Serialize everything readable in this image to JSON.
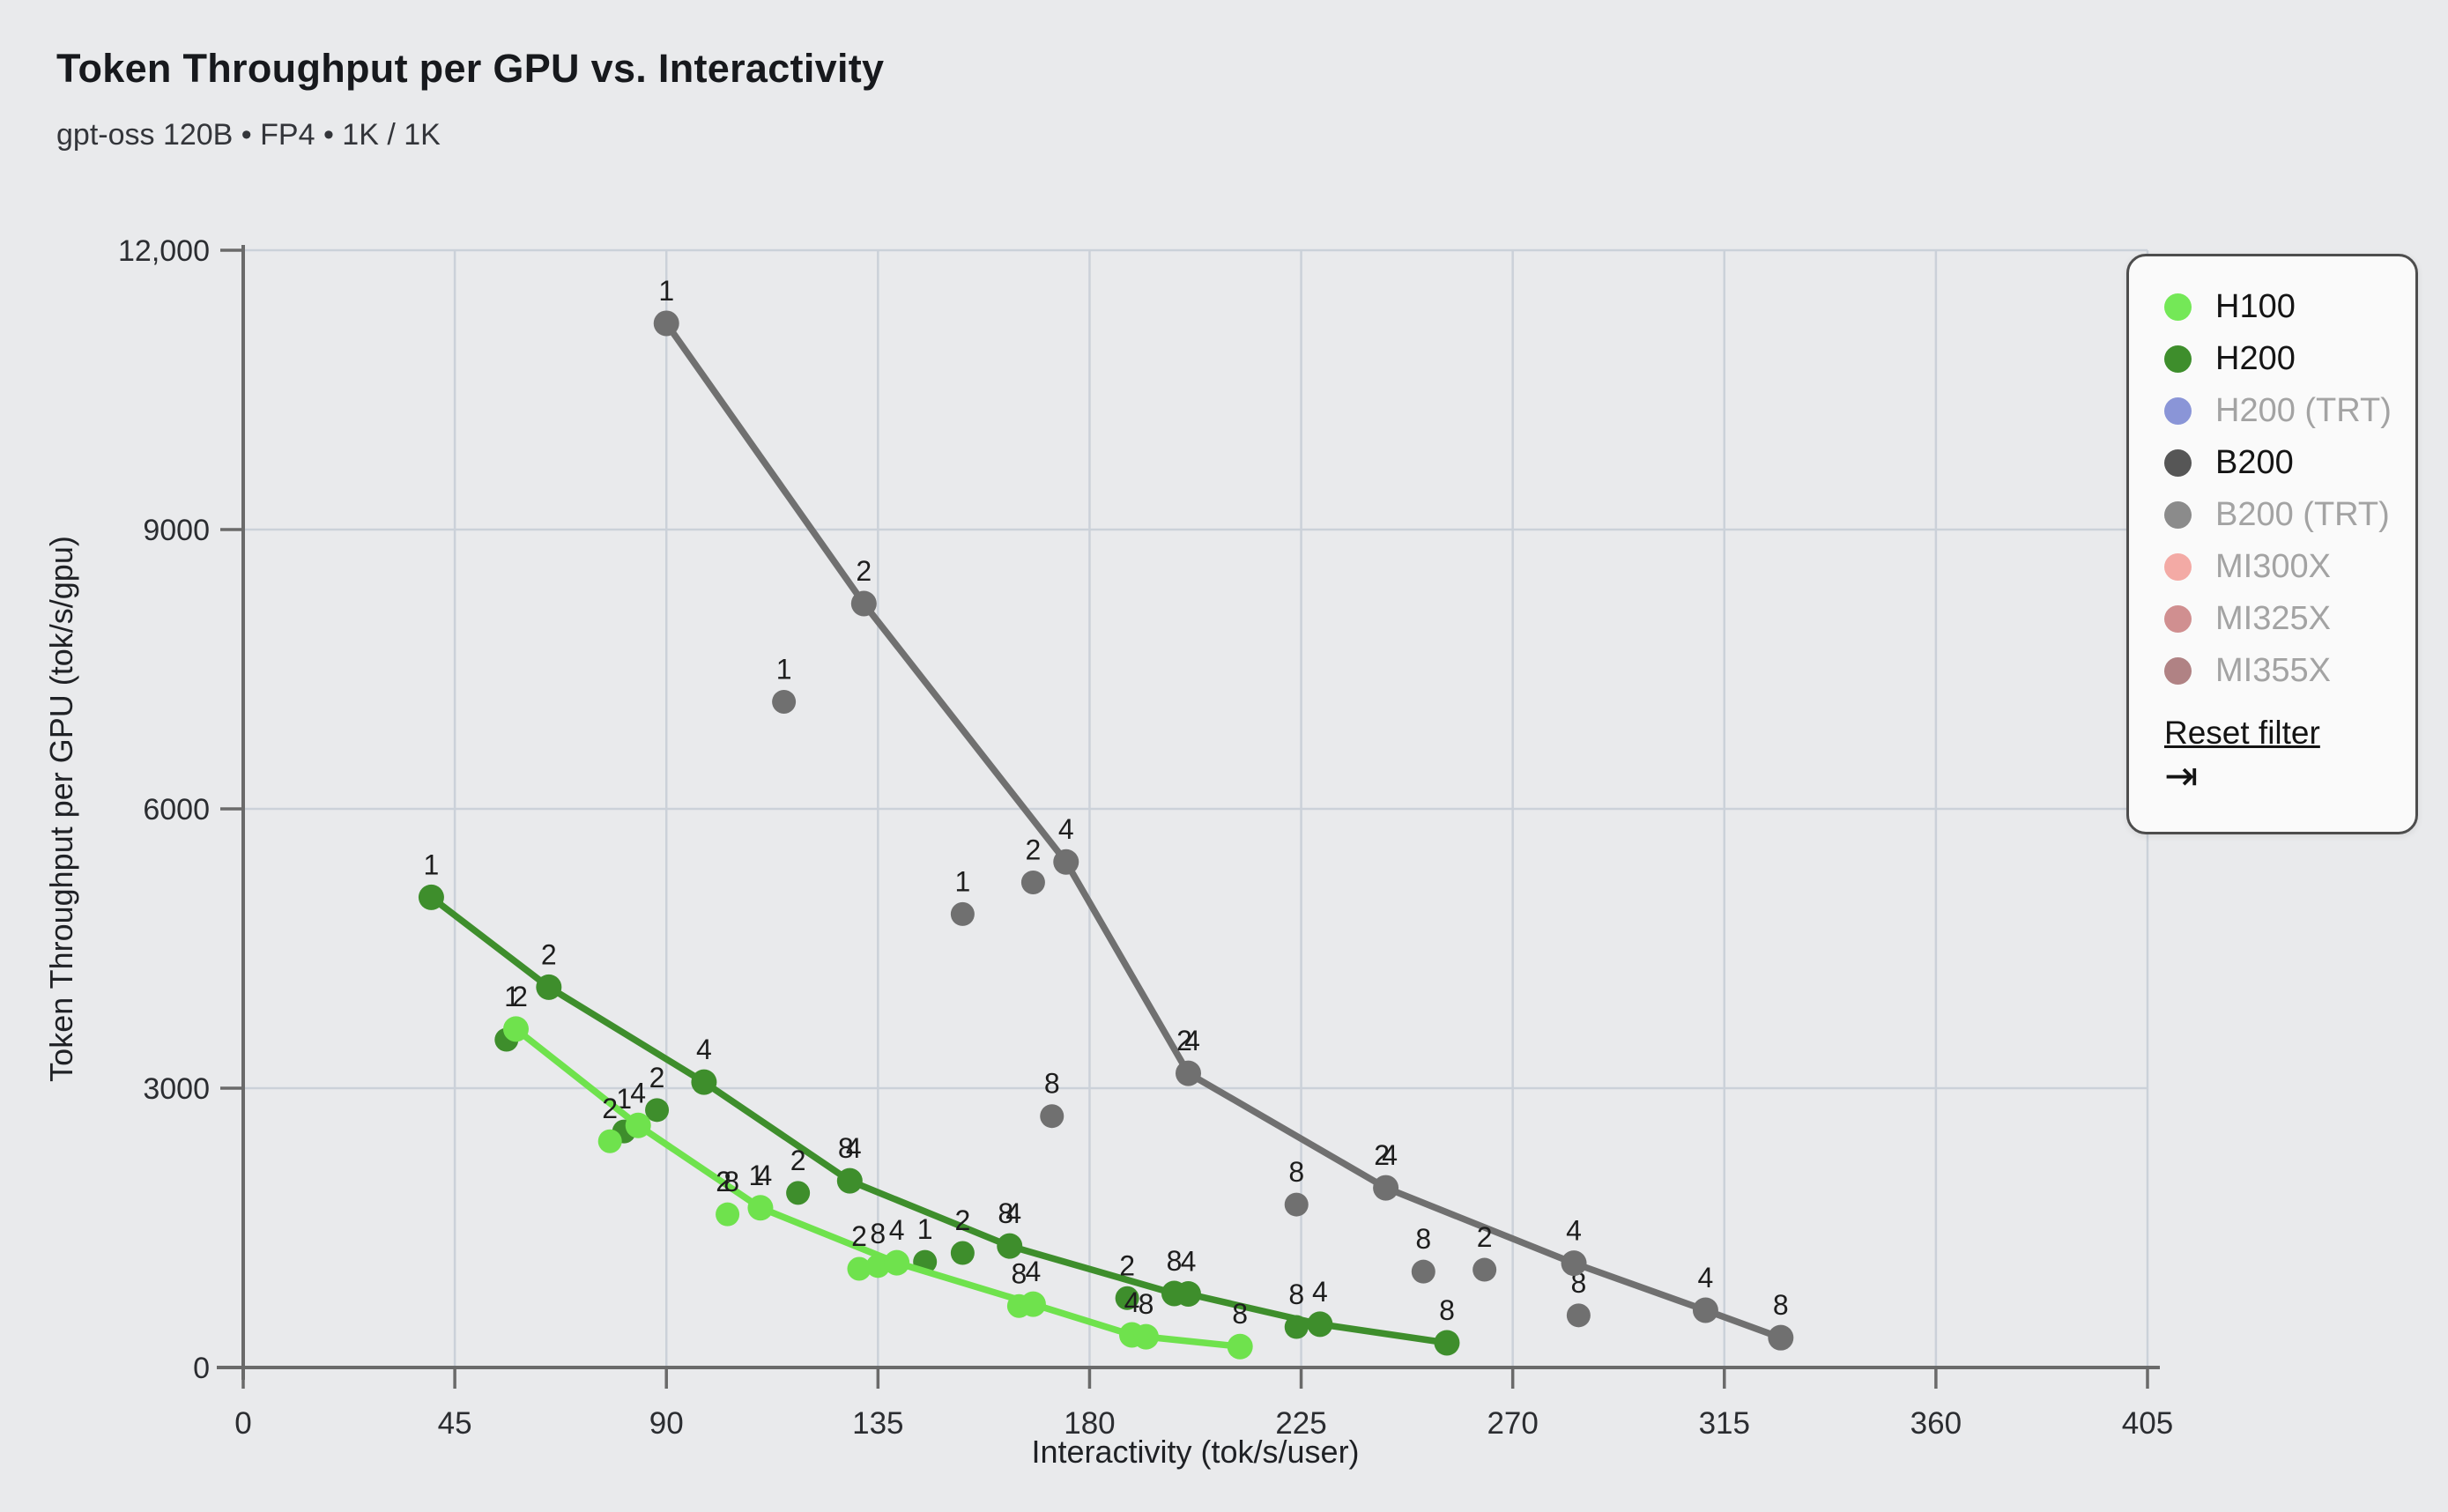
{
  "header": {
    "title": "Token Throughput per GPU vs. Interactivity",
    "subtitle": "gpt-oss 120B • FP4 • 1K / 1K"
  },
  "legend": {
    "items": [
      {
        "label": "H100",
        "color": "#74e857",
        "active": true
      },
      {
        "label": "H200",
        "color": "#3e8e2c",
        "active": true
      },
      {
        "label": "H200 (TRT)",
        "color": "#8a95d7",
        "active": false
      },
      {
        "label": "B200",
        "color": "#565656",
        "active": true
      },
      {
        "label": "B200 (TRT)",
        "color": "#8b8b8b",
        "active": false
      },
      {
        "label": "MI300X",
        "color": "#f3aaa5",
        "active": false
      },
      {
        "label": "MI325X",
        "color": "#d08f90",
        "active": false
      },
      {
        "label": "MI355X",
        "color": "#b08284",
        "active": false
      }
    ],
    "reset_label": "Reset filter",
    "reset_icon": "⇥"
  },
  "chart_data": {
    "type": "scatter",
    "title": "Token Throughput per GPU vs. Interactivity",
    "xlabel": "Interactivity (tok/s/user)",
    "ylabel": "Token Throughput per GPU (tok/s/gpu)",
    "xlim": [
      0,
      405
    ],
    "ylim": [
      0,
      12000
    ],
    "x_ticks": [
      0,
      45,
      90,
      135,
      180,
      225,
      270,
      315,
      360,
      405
    ],
    "x_tick_labels": [
      "0",
      "45",
      "90",
      "135",
      "180",
      "225",
      "270",
      "315",
      "360",
      "405"
    ],
    "y_ticks": [
      0,
      3000,
      6000,
      9000,
      12000
    ],
    "y_tick_labels": [
      "0",
      "3000",
      "6000",
      "9000",
      "12,000"
    ],
    "grid": true,
    "legend_position": "top-right",
    "colors": {
      "background": "#e9eaec",
      "grid": "#cbd1d9",
      "axis": "#6a6a6a",
      "tick_text": "#2b2d31",
      "point_label_text": "#1d1d1d"
    },
    "series": [
      {
        "name": "H200",
        "color": "#3e8e2c",
        "line_points": [
          {
            "x": 40,
            "y": 5050,
            "labels": [
              "1"
            ]
          },
          {
            "x": 65,
            "y": 4085,
            "labels": [
              "2"
            ]
          },
          {
            "x": 98,
            "y": 3065,
            "labels": [
              "4"
            ]
          },
          {
            "x": 129,
            "y": 2005,
            "labels": [
              "8",
              "4"
            ]
          },
          {
            "x": 163,
            "y": 1305,
            "labels": [
              "8",
              "4"
            ]
          },
          {
            "x": 198,
            "y": 795,
            "labels": [
              "8"
            ]
          },
          {
            "x": 201,
            "y": 790,
            "labels": [
              "4"
            ]
          },
          {
            "x": 229,
            "y": 465,
            "labels": [
              "4"
            ]
          },
          {
            "x": 256,
            "y": 265,
            "labels": [
              "8"
            ]
          }
        ],
        "scatter_points": [
          {
            "x": 56,
            "y": 3520,
            "labels": []
          },
          {
            "x": 81,
            "y": 2535,
            "labels": [
              "1"
            ]
          },
          {
            "x": 88,
            "y": 2765,
            "labels": [
              "2"
            ]
          },
          {
            "x": 118,
            "y": 1875,
            "labels": [
              "2"
            ]
          },
          {
            "x": 145,
            "y": 1135,
            "labels": [
              "1"
            ]
          },
          {
            "x": 153,
            "y": 1230,
            "labels": [
              "2"
            ]
          },
          {
            "x": 188,
            "y": 745,
            "labels": [
              "2"
            ]
          },
          {
            "x": 224,
            "y": 435,
            "labels": [
              "8"
            ]
          }
        ]
      },
      {
        "name": "H100",
        "color": "#6fe24d",
        "line_points": [
          {
            "x": 58,
            "y": 3635,
            "labels": [
              "1",
              "2"
            ]
          },
          {
            "x": 84,
            "y": 2600,
            "labels": [
              "4"
            ]
          },
          {
            "x": 110,
            "y": 1715,
            "labels": [
              "1",
              "4"
            ]
          },
          {
            "x": 139,
            "y": 1125,
            "labels": [
              "4"
            ]
          },
          {
            "x": 168,
            "y": 680,
            "labels": [
              "4"
            ]
          },
          {
            "x": 189,
            "y": 350,
            "labels": [
              "4"
            ]
          },
          {
            "x": 192,
            "y": 330,
            "labels": [
              "8"
            ]
          },
          {
            "x": 212,
            "y": 225,
            "labels": [
              "8"
            ]
          }
        ],
        "scatter_points": [
          {
            "x": 78,
            "y": 2430,
            "labels": [
              "2"
            ]
          },
          {
            "x": 103,
            "y": 1645,
            "labels": [
              "2",
              "8"
            ]
          },
          {
            "x": 131,
            "y": 1060,
            "labels": [
              "2"
            ]
          },
          {
            "x": 135,
            "y": 1090,
            "labels": [
              "8"
            ]
          },
          {
            "x": 165,
            "y": 660,
            "labels": [
              "8"
            ]
          }
        ]
      },
      {
        "name": "B200",
        "color": "#707070",
        "line_points": [
          {
            "x": 90,
            "y": 11215,
            "labels": [
              "1"
            ]
          },
          {
            "x": 132,
            "y": 8205,
            "labels": [
              "2"
            ]
          },
          {
            "x": 175,
            "y": 5430,
            "labels": [
              "4"
            ]
          },
          {
            "x": 201,
            "y": 3160,
            "labels": [
              "2",
              "4"
            ]
          },
          {
            "x": 243,
            "y": 1930,
            "labels": [
              "2",
              "4"
            ]
          },
          {
            "x": 283,
            "y": 1120,
            "labels": [
              "4"
            ]
          },
          {
            "x": 311,
            "y": 615,
            "labels": [
              "4"
            ]
          },
          {
            "x": 327,
            "y": 320,
            "labels": [
              "8"
            ]
          }
        ],
        "scatter_points": [
          {
            "x": 115,
            "y": 7150,
            "labels": [
              "1"
            ]
          },
          {
            "x": 153,
            "y": 4870,
            "labels": [
              "1"
            ]
          },
          {
            "x": 168,
            "y": 5210,
            "labels": [
              "2"
            ]
          },
          {
            "x": 172,
            "y": 2700,
            "labels": [
              "8"
            ]
          },
          {
            "x": 224,
            "y": 1750,
            "labels": [
              "8"
            ]
          },
          {
            "x": 251,
            "y": 1030,
            "labels": [
              "8"
            ]
          },
          {
            "x": 264,
            "y": 1050,
            "labels": [
              "2"
            ]
          },
          {
            "x": 284,
            "y": 560,
            "labels": [
              "8"
            ]
          }
        ]
      }
    ]
  }
}
